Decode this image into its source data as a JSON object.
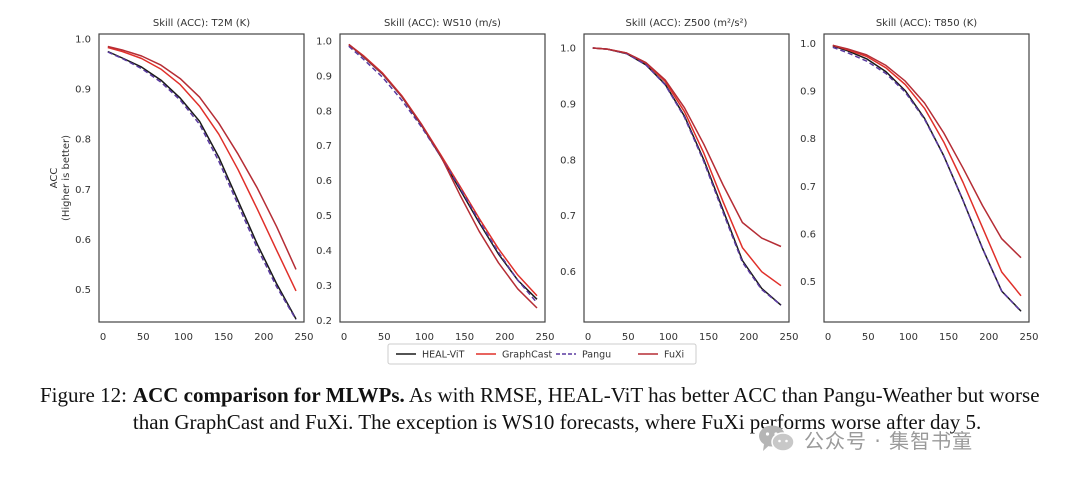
{
  "chart_data": [
    {
      "type": "line",
      "title": "Skill (ACC): T2M (K)",
      "xlabel": "",
      "ylabel": "ACC\n(Higher is better)",
      "xlim": [
        -5,
        250
      ],
      "ylim": [
        0.435,
        1.01
      ],
      "xticks": [
        0,
        50,
        100,
        150,
        200,
        250
      ],
      "yticks": [
        0.5,
        0.6,
        0.7,
        0.8,
        0.9,
        1.0
      ],
      "ytick_labels": [
        "0.5",
        "0.6",
        "0.7",
        "0.8",
        "0.9",
        "1.0"
      ],
      "x": [
        6,
        24,
        48,
        72,
        96,
        120,
        144,
        168,
        192,
        216,
        240
      ],
      "series": [
        {
          "name": "HEAL-ViT",
          "values": [
            0.975,
            0.962,
            0.944,
            0.918,
            0.882,
            0.836,
            0.764,
            0.677,
            0.59,
            0.511,
            0.441
          ]
        },
        {
          "name": "GraphCast",
          "values": [
            0.983,
            0.975,
            0.961,
            0.94,
            0.909,
            0.866,
            0.81,
            0.739,
            0.66,
            0.578,
            0.497
          ]
        },
        {
          "name": "Pangu",
          "values": [
            0.974,
            0.961,
            0.941,
            0.914,
            0.878,
            0.83,
            0.756,
            0.669,
            0.582,
            0.505,
            0.44
          ]
        },
        {
          "name": "FuXi",
          "values": [
            0.985,
            0.978,
            0.966,
            0.948,
            0.921,
            0.884,
            0.832,
            0.77,
            0.702,
            0.625,
            0.54
          ]
        }
      ]
    },
    {
      "type": "line",
      "title": "Skill (ACC): WS10 (m/s)",
      "xlabel": "",
      "ylabel": "",
      "xlim": [
        -5,
        250
      ],
      "ylim": [
        0.195,
        1.02
      ],
      "xticks": [
        0,
        50,
        100,
        150,
        200,
        250
      ],
      "yticks": [
        0.2,
        0.3,
        0.4,
        0.5,
        0.6,
        0.7,
        0.8,
        0.9,
        1.0
      ],
      "ytick_labels": [
        "0.2",
        "0.3",
        "0.4",
        "0.5",
        "0.6",
        "0.7",
        "0.8",
        "0.9",
        "1.0"
      ],
      "x": [
        6,
        24,
        48,
        72,
        96,
        120,
        144,
        168,
        192,
        216,
        240
      ],
      "series": [
        {
          "name": "HEAL-ViT",
          "values": [
            0.99,
            0.955,
            0.905,
            0.84,
            0.76,
            0.67,
            0.575,
            0.48,
            0.39,
            0.315,
            0.26
          ]
        },
        {
          "name": "GraphCast",
          "values": [
            0.99,
            0.958,
            0.908,
            0.843,
            0.763,
            0.675,
            0.585,
            0.492,
            0.405,
            0.33,
            0.27
          ]
        },
        {
          "name": "Pangu",
          "values": [
            0.985,
            0.948,
            0.896,
            0.83,
            0.755,
            0.67,
            0.58,
            0.485,
            0.395,
            0.315,
            0.25
          ]
        },
        {
          "name": "FuXi",
          "values": [
            0.99,
            0.956,
            0.906,
            0.841,
            0.762,
            0.672,
            0.56,
            0.455,
            0.365,
            0.29,
            0.235
          ]
        }
      ]
    },
    {
      "type": "line",
      "title": "Skill (ACC): Z500 (m²/s²)",
      "xlabel": "",
      "ylabel": "",
      "xlim": [
        -5,
        250
      ],
      "ylim": [
        0.51,
        1.025
      ],
      "xticks": [
        0,
        50,
        100,
        150,
        200,
        250
      ],
      "yticks": [
        0.6,
        0.7,
        0.8,
        0.9,
        1.0
      ],
      "ytick_labels": [
        "0.6",
        "0.7",
        "0.8",
        "0.9",
        "1.0"
      ],
      "x": [
        6,
        24,
        48,
        72,
        96,
        120,
        144,
        168,
        192,
        216,
        240
      ],
      "series": [
        {
          "name": "HEAL-ViT",
          "values": [
            1.0,
            0.998,
            0.99,
            0.97,
            0.935,
            0.878,
            0.8,
            0.71,
            0.62,
            0.57,
            0.54
          ]
        },
        {
          "name": "GraphCast",
          "values": [
            1.0,
            0.998,
            0.991,
            0.973,
            0.94,
            0.886,
            0.812,
            0.725,
            0.643,
            0.6,
            0.575
          ]
        },
        {
          "name": "Pangu",
          "values": [
            1.0,
            0.998,
            0.99,
            0.97,
            0.934,
            0.876,
            0.797,
            0.706,
            0.617,
            0.568,
            0.54
          ]
        },
        {
          "name": "FuXi",
          "values": [
            1.0,
            0.998,
            0.991,
            0.974,
            0.943,
            0.893,
            0.828,
            0.755,
            0.688,
            0.66,
            0.645
          ]
        }
      ]
    },
    {
      "type": "line",
      "title": "Skill (ACC): T850 (K)",
      "xlabel": "",
      "ylabel": "",
      "xlim": [
        -5,
        250
      ],
      "ylim": [
        0.415,
        1.02
      ],
      "xticks": [
        0,
        50,
        100,
        150,
        200,
        250
      ],
      "yticks": [
        0.5,
        0.6,
        0.7,
        0.8,
        0.9,
        1.0
      ],
      "ytick_labels": [
        "0.5",
        "0.6",
        "0.7",
        "0.8",
        "0.9",
        "1.0"
      ],
      "x": [
        6,
        24,
        48,
        72,
        96,
        120,
        144,
        168,
        192,
        216,
        240
      ],
      "series": [
        {
          "name": "HEAL-ViT",
          "values": [
            0.995,
            0.985,
            0.968,
            0.941,
            0.901,
            0.843,
            0.764,
            0.67,
            0.57,
            0.48,
            0.438
          ]
        },
        {
          "name": "GraphCast",
          "values": [
            0.996,
            0.987,
            0.973,
            0.949,
            0.914,
            0.864,
            0.793,
            0.708,
            0.614,
            0.52,
            0.47
          ]
        },
        {
          "name": "Pangu",
          "values": [
            0.992,
            0.981,
            0.963,
            0.937,
            0.898,
            0.841,
            0.764,
            0.67,
            0.57,
            0.48,
            0.437
          ]
        },
        {
          "name": "FuXi",
          "values": [
            0.996,
            0.989,
            0.976,
            0.954,
            0.921,
            0.875,
            0.812,
            0.738,
            0.66,
            0.59,
            0.55
          ]
        }
      ]
    }
  ],
  "legend": {
    "entries": [
      {
        "name": "HEAL-ViT",
        "color": "#1a1a1a",
        "dash": "solid"
      },
      {
        "name": "GraphCast",
        "color": "#e0302a",
        "dash": "solid"
      },
      {
        "name": "Pangu",
        "color": "#5a3aa0",
        "dash": "dashed"
      },
      {
        "name": "FuXi",
        "color": "#b52d35",
        "dash": "solid"
      }
    ]
  },
  "caption": {
    "label": "Figure 12:",
    "bold": "ACC comparison for MLWPs.",
    "text": " As with RMSE, HEAL-ViT has better ACC than Pangu-Weather but worse than GraphCast and FuXi. The exception is WS10 forecasts, where FuXi performs worse after day 5."
  },
  "watermark": {
    "text": "公众号 · 集智书童",
    "icon": "wechat-icon"
  }
}
